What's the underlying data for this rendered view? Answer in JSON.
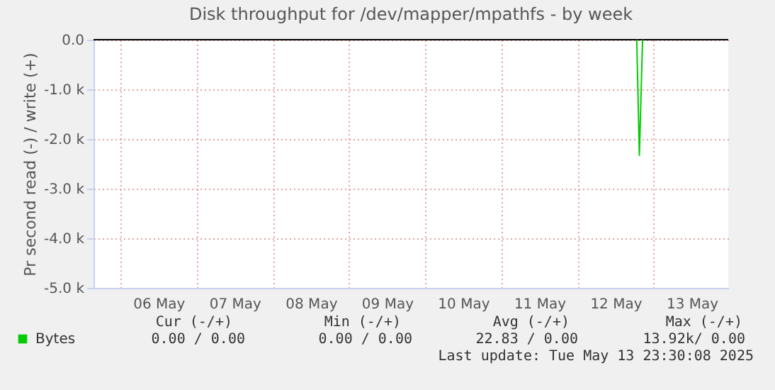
{
  "chart_data": {
    "type": "line",
    "title": "Disk throughput for /dev/mapper/mpathfs - by week",
    "ylabel": "Pr second read (-) / write (+)",
    "x": [
      "2025-05-12T18:40",
      "2025-05-12T19:30",
      "2025-05-12T20:30"
    ],
    "series": [
      {
        "name": "Bytes",
        "color": "#00cc00",
        "values": [
          0,
          -2330,
          0
        ]
      }
    ],
    "xlim": [
      "2025-05-05T15:30",
      "2025-05-13T23:30"
    ],
    "xticks": [
      {
        "value": "2025-05-06T00:00",
        "label": null
      },
      {
        "value": "2025-05-07T00:00",
        "label": null
      },
      {
        "value": "2025-05-08T00:00",
        "label": null
      },
      {
        "value": "2025-05-09T00:00",
        "label": null
      },
      {
        "value": "2025-05-10T00:00",
        "label": null
      },
      {
        "value": "2025-05-11T00:00",
        "label": null
      },
      {
        "value": "2025-05-12T00:00",
        "label": null
      },
      {
        "value": "2025-05-13T00:00",
        "label": null
      },
      {
        "value": "2025-05-06T12:00",
        "label": "06 May"
      },
      {
        "value": "2025-05-07T12:00",
        "label": "07 May"
      },
      {
        "value": "2025-05-08T12:00",
        "label": "08 May"
      },
      {
        "value": "2025-05-09T12:00",
        "label": "09 May"
      },
      {
        "value": "2025-05-10T12:00",
        "label": "10 May"
      },
      {
        "value": "2025-05-11T12:00",
        "label": "11 May"
      },
      {
        "value": "2025-05-12T12:00",
        "label": "12 May"
      },
      {
        "value": "2025-05-13T12:00",
        "label": "13 May"
      }
    ],
    "ylim": [
      -5000,
      0
    ],
    "yticks": [
      {
        "value": 0,
        "label": "0.0"
      },
      {
        "value": -1000,
        "label": "-1.0 k"
      },
      {
        "value": -2000,
        "label": "-2.0 k"
      },
      {
        "value": -3000,
        "label": "-3.0 k"
      },
      {
        "value": -4000,
        "label": "-4.0 k"
      },
      {
        "value": -5000,
        "label": "-5.0 k"
      }
    ],
    "ref_lines": [
      {
        "axis": "y",
        "value": 0,
        "color": "#000000"
      }
    ],
    "grid": true,
    "legend": "bottom",
    "annotations": [
      "Cur (-/+)",
      "Min (-/+)",
      "Avg (-/+)",
      "Max (-/+)",
      "0.00 /   0.00",
      "0.00 /    0.00",
      "22.83 /    0.00",
      "13.92k/    0.00",
      "Last update: Tue May 13 23:30:08 2025"
    ]
  }
}
